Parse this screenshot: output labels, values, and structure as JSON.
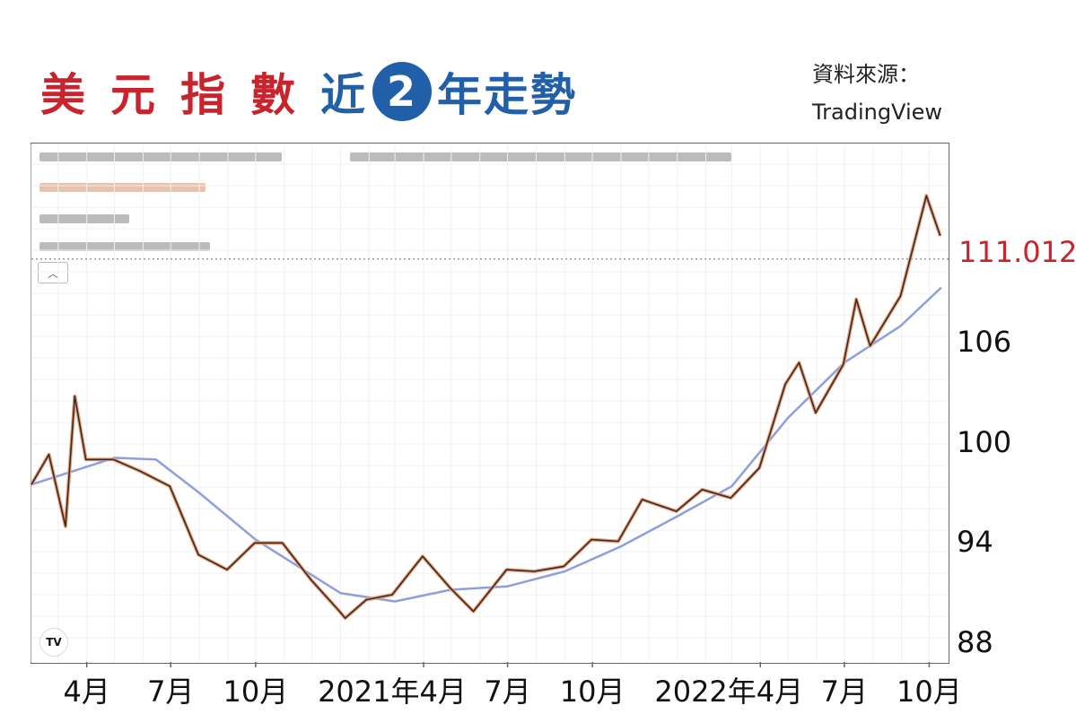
{
  "title": {
    "red_part": "美元指數",
    "blue_prefix": "近",
    "badge_number": "2",
    "blue_suffix": "年走勢"
  },
  "source": {
    "label": "資料來源：",
    "name": "TradingView"
  },
  "current_price": "111.012",
  "colors": {
    "title_red": "#c8242e",
    "title_blue": "#2160a8",
    "candle_line": "#e8a07a",
    "candle_dark": "#3a2a22",
    "moving_average": "#8e9fdc",
    "price_line": "#888888"
  },
  "chart_data": {
    "type": "line",
    "y_ticks": [
      "106",
      "100",
      "94",
      "88"
    ],
    "x_ticks": [
      "4月",
      "7月",
      "10月",
      "2021年4月",
      "7月",
      "10月",
      "2022年4月",
      "7月",
      "10月"
    ],
    "ylim": [
      86.5,
      116
    ],
    "current_value": 111.012,
    "series": [
      {
        "type": "price",
        "x": [
          "2020-02-01",
          "2020-02-20",
          "2020-03-09",
          "2020-03-19",
          "2020-03-31",
          "2020-04-30",
          "2020-05-29",
          "2020-06-30",
          "2020-07-31",
          "2020-08-31",
          "2020-09-30",
          "2020-10-30",
          "2020-11-30",
          "2020-12-31",
          "2021-01-06",
          "2021-01-29",
          "2021-02-26",
          "2021-03-31",
          "2021-04-30",
          "2021-05-25",
          "2021-06-30",
          "2021-07-30",
          "2021-08-31",
          "2021-09-30",
          "2021-10-29",
          "2021-11-24",
          "2021-12-31",
          "2022-01-28",
          "2022-02-28",
          "2022-03-31",
          "2022-04-28",
          "2022-05-13",
          "2022-05-31",
          "2022-06-30",
          "2022-07-14",
          "2022-07-29",
          "2022-08-31",
          "2022-09-28",
          "2022-10-13"
        ],
        "y": [
          97.5,
          99.3,
          95.0,
          102.8,
          99.0,
          99.0,
          98.3,
          97.4,
          93.3,
          92.4,
          94.0,
          94.0,
          91.8,
          89.9,
          89.5,
          90.6,
          90.9,
          93.2,
          91.3,
          89.9,
          92.4,
          92.3,
          92.6,
          94.2,
          94.1,
          96.6,
          95.9,
          97.2,
          96.7,
          98.5,
          103.5,
          104.8,
          101.8,
          104.7,
          108.6,
          105.8,
          108.8,
          114.8,
          112.4
        ]
      },
      {
        "type": "moving_average",
        "x": [
          "2020-02-01",
          "2020-05-01",
          "2020-06-15",
          "2020-08-01",
          "2020-10-01",
          "2021-01-01",
          "2021-03-01",
          "2021-05-01",
          "2021-07-01",
          "2021-09-01",
          "2021-11-01",
          "2022-01-01",
          "2022-03-01",
          "2022-05-01",
          "2022-07-01",
          "2022-08-31",
          "2022-10-14"
        ],
        "y": [
          97.5,
          99.1,
          99.0,
          97.0,
          94.2,
          91.0,
          90.5,
          91.2,
          91.4,
          92.3,
          93.8,
          95.6,
          97.4,
          101.5,
          104.8,
          107.0,
          109.3
        ]
      }
    ]
  }
}
